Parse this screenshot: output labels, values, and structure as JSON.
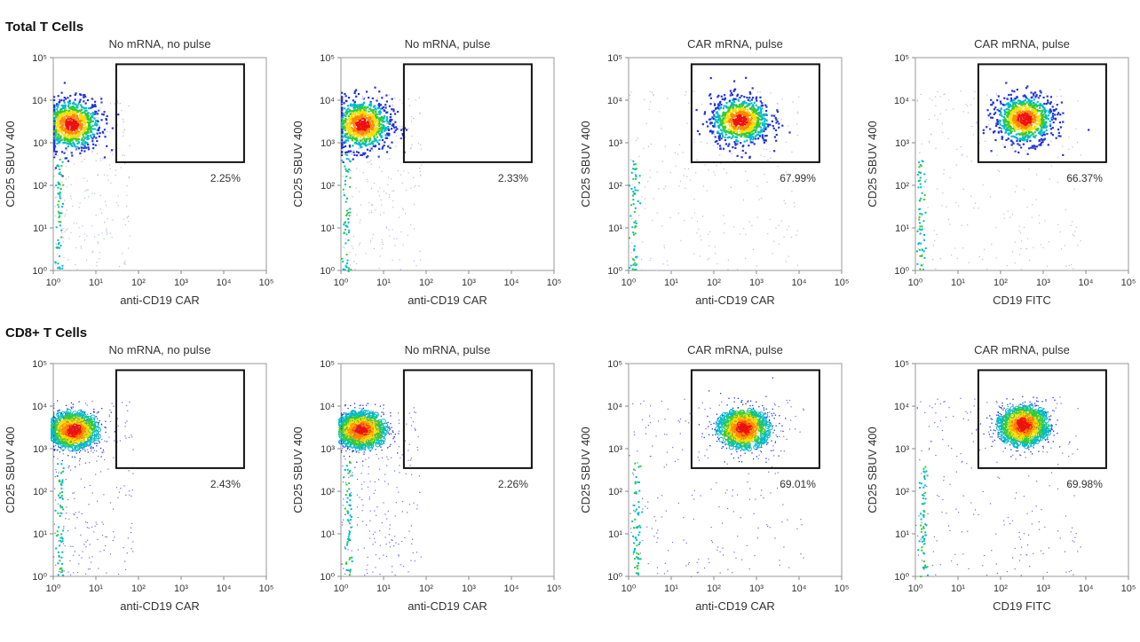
{
  "figure": {
    "rows": [
      {
        "title": "Total T Cells",
        "style": "density",
        "panels": [
          {
            "title": "No mRNA, no pulse",
            "xlabel": "anti-CD19 CAR",
            "ylabel": "CD25 SBUV 400",
            "gate_pct": "2.25%"
          },
          {
            "title": "No mRNA, pulse",
            "xlabel": "anti-CD19 CAR",
            "ylabel": "CD25 SBUV 400",
            "gate_pct": "2.33%"
          },
          {
            "title": "CAR mRNA, pulse",
            "xlabel": "anti-CD19 CAR",
            "ylabel": "CD25 SBUV 400",
            "gate_pct": "67.99%"
          },
          {
            "title": "CAR mRNA, pulse",
            "xlabel": "CD19 FITC",
            "ylabel": "CD25 SBUV 400",
            "gate_pct": "66.37%"
          }
        ]
      },
      {
        "title": "CD8+ T Cells",
        "style": "contour",
        "panels": [
          {
            "title": "No mRNA, no pulse",
            "xlabel": "anti-CD19 CAR",
            "ylabel": "CD25 SBUV 400",
            "gate_pct": "2.43%"
          },
          {
            "title": "No mRNA, pulse",
            "xlabel": "anti-CD19 CAR",
            "ylabel": "CD25 SBUV 400",
            "gate_pct": "2.26%"
          },
          {
            "title": "CAR mRNA, pulse",
            "xlabel": "anti-CD19 CAR",
            "ylabel": "CD25 SBUV 400",
            "gate_pct": "69.01%"
          },
          {
            "title": "CAR mRNA, pulse",
            "xlabel": "CD19 FITC",
            "ylabel": "CD25 SBUV 400",
            "gate_pct": "69.98%"
          }
        ]
      }
    ]
  },
  "chart_data": {
    "type": "scatter",
    "x_scale": "log",
    "y_scale": "log",
    "xlim": [
      1,
      100000
    ],
    "ylim": [
      1,
      100000
    ],
    "x_ticks": [
      "10⁰",
      "10¹",
      "10²",
      "10³",
      "10⁴",
      "10⁵"
    ],
    "y_ticks": [
      "10⁰",
      "10¹",
      "10²",
      "10³",
      "10⁴",
      "10⁵"
    ],
    "gate": {
      "x_range": [
        30,
        30000
      ],
      "y_range": [
        350,
        70000
      ]
    },
    "colors": [
      "#e8e8f8",
      "#2233dd",
      "#00bbcc",
      "#33cc33",
      "#ffdd00",
      "#ff8800",
      "#ee1111"
    ],
    "populations": [
      {
        "row": 0,
        "panel": 0,
        "center": [
          2.5,
          2800
        ],
        "spread": [
          0.35,
          0.3
        ],
        "tail": [
          1.3,
          2
        ],
        "gate_pct": 2.25
      },
      {
        "row": 0,
        "panel": 1,
        "center": [
          3,
          2800
        ],
        "spread": [
          0.35,
          0.3
        ],
        "tail": [
          1.3,
          2
        ],
        "gate_pct": 2.33
      },
      {
        "row": 0,
        "panel": 2,
        "center": [
          400,
          3500
        ],
        "spread": [
          0.35,
          0.28
        ],
        "tail": [
          1.3,
          1.3
        ],
        "gate_pct": 67.99
      },
      {
        "row": 0,
        "panel": 3,
        "center": [
          350,
          3800
        ],
        "spread": [
          0.35,
          0.28
        ],
        "tail": [
          1.3,
          1.3
        ],
        "gate_pct": 66.37
      },
      {
        "row": 1,
        "panel": 0,
        "center": [
          3,
          2700
        ],
        "spread": [
          0.35,
          0.25
        ],
        "tail": [
          1.4,
          2
        ],
        "gate_pct": 2.43
      },
      {
        "row": 1,
        "panel": 1,
        "center": [
          3,
          2700
        ],
        "spread": [
          0.35,
          0.25
        ],
        "tail": [
          1.4,
          2
        ],
        "gate_pct": 2.26
      },
      {
        "row": 1,
        "panel": 2,
        "center": [
          500,
          3000
        ],
        "spread": [
          0.35,
          0.28
        ],
        "tail": [
          1.5,
          1.5
        ],
        "gate_pct": 69.01
      },
      {
        "row": 1,
        "panel": 3,
        "center": [
          350,
          3500
        ],
        "spread": [
          0.35,
          0.28
        ],
        "tail": [
          1.5,
          1.5
        ],
        "gate_pct": 69.98
      }
    ]
  }
}
